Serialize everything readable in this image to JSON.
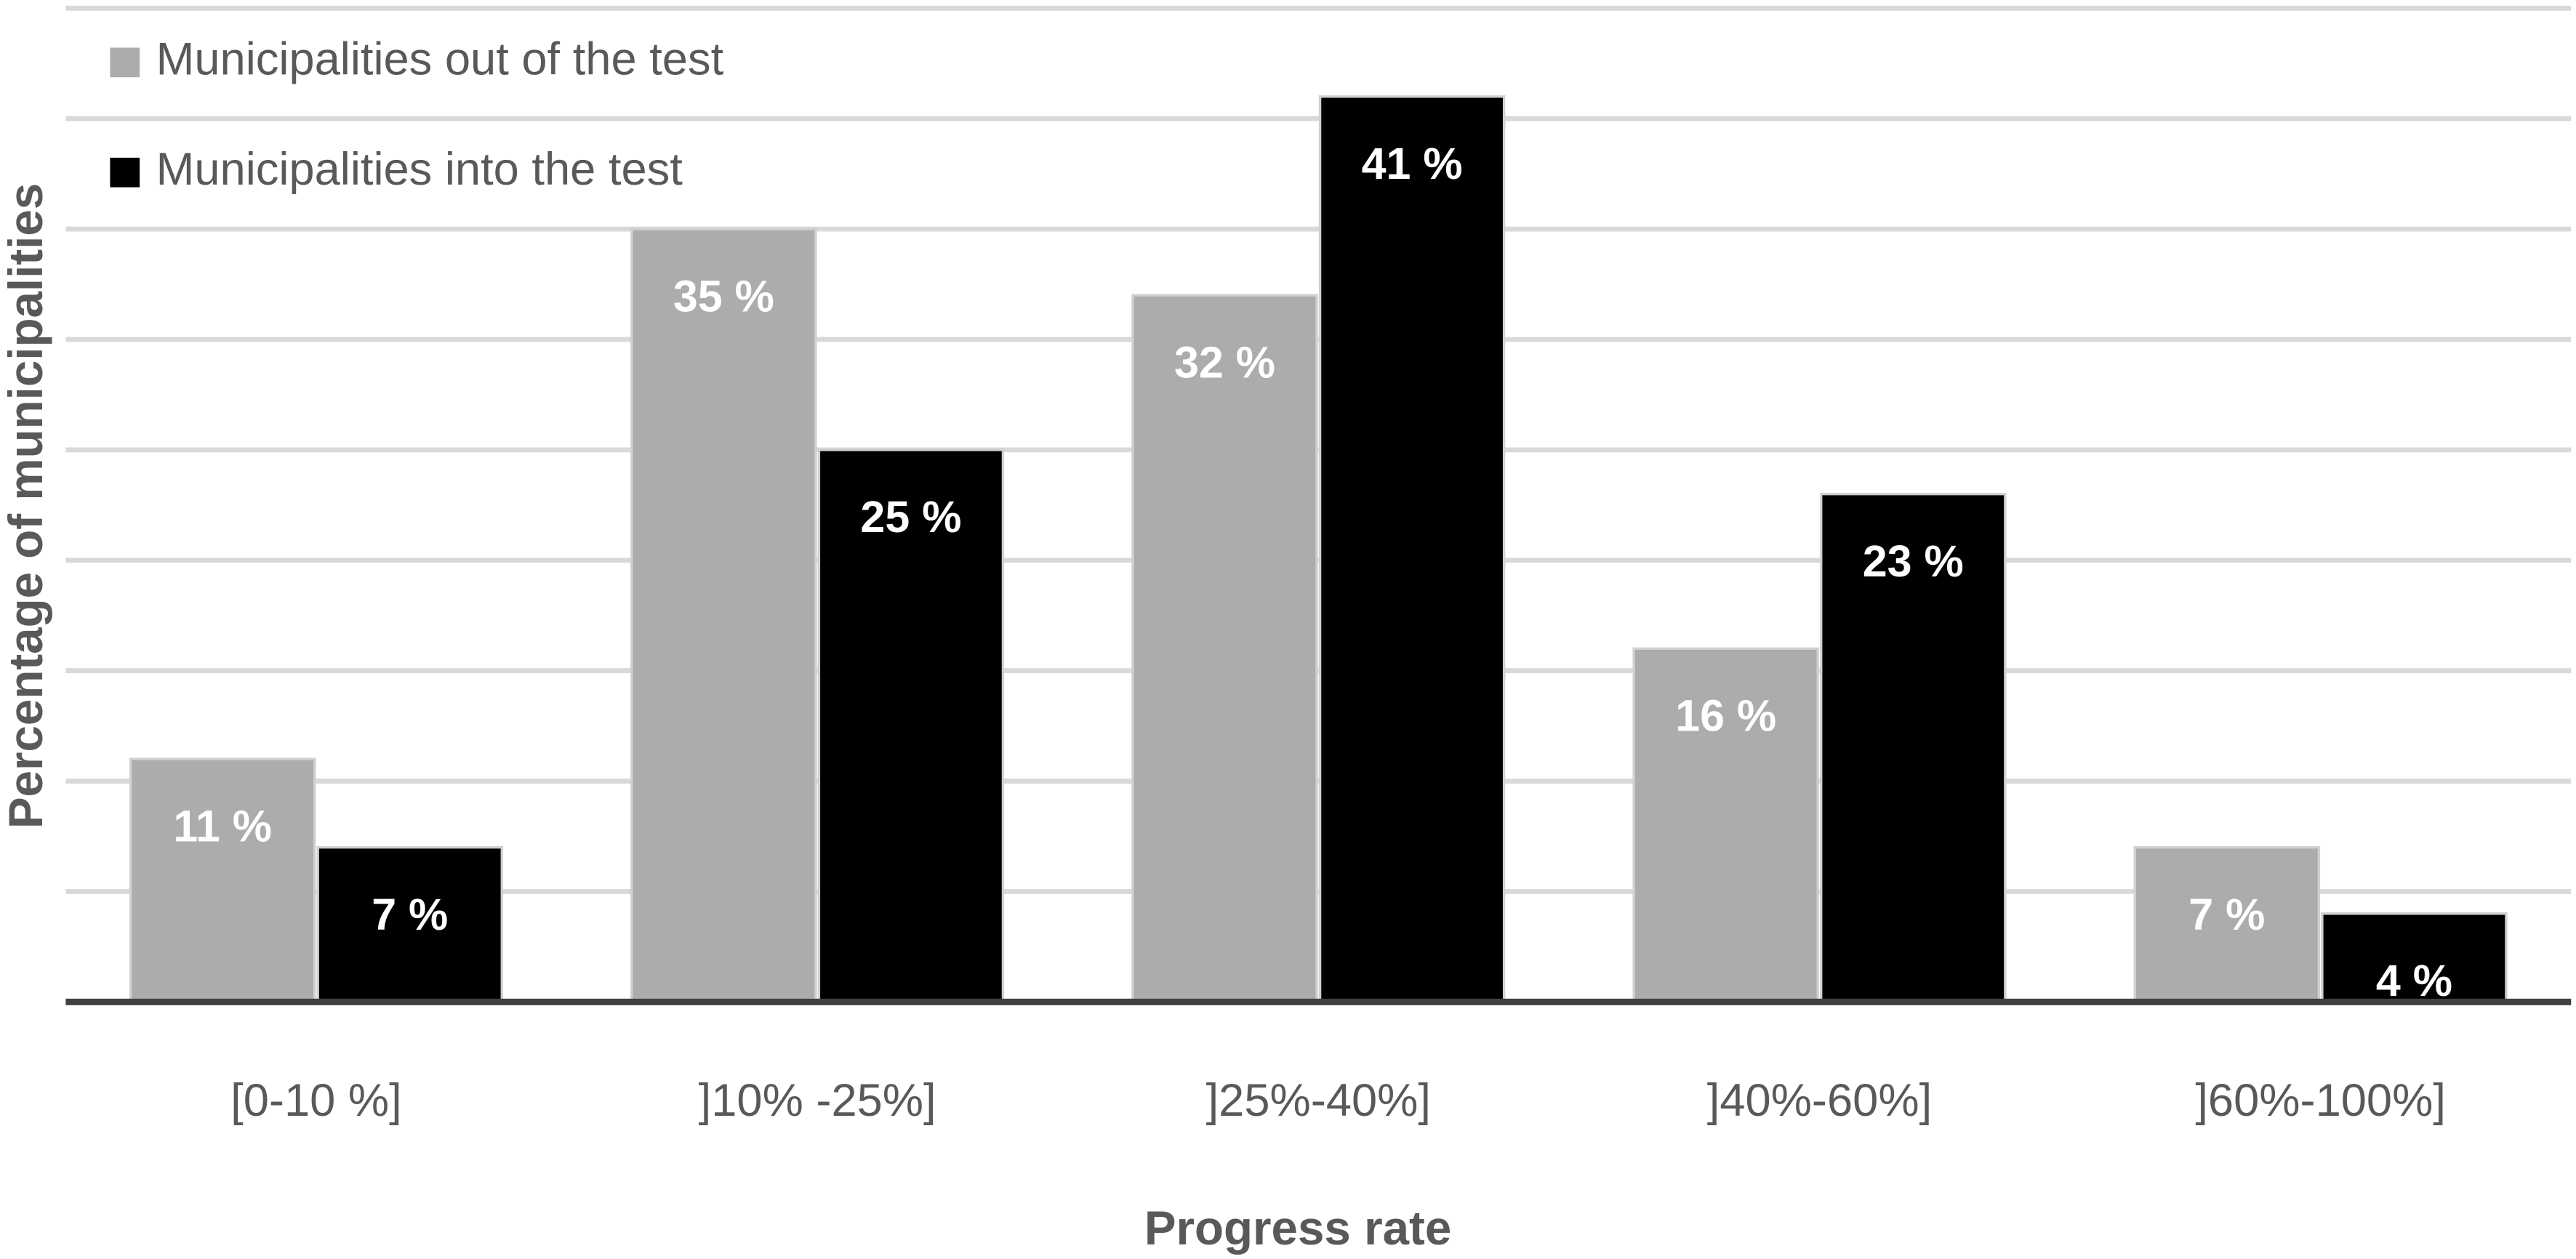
{
  "chart_data": {
    "type": "bar",
    "x_label": "Progress rate",
    "y_label": "Percentage of municipalities",
    "categories": [
      "[0-10 %]",
      "]10% -25%]",
      "]25%-40%]",
      "]40%-60%]",
      "]60%-100%]"
    ],
    "series": [
      {
        "name": "Municipalities out of the test",
        "color": "#aeabab",
        "values": [
          11,
          35,
          32,
          16,
          7
        ],
        "value_labels": [
          "11 %",
          "35 %",
          "32 %",
          "16 %",
          "7 %"
        ]
      },
      {
        "name": "Municipalities into the test",
        "color": "#000000",
        "values": [
          7,
          25,
          41,
          23,
          4
        ],
        "value_labels": [
          "7 %",
          "25 %",
          "41 %",
          "23 %",
          "4 %"
        ]
      }
    ],
    "ylim": [
      0,
      45
    ],
    "yticks": [
      0,
      5,
      10,
      15,
      20,
      25,
      30,
      35,
      40,
      45
    ],
    "grid": true,
    "legend": "upper left"
  }
}
